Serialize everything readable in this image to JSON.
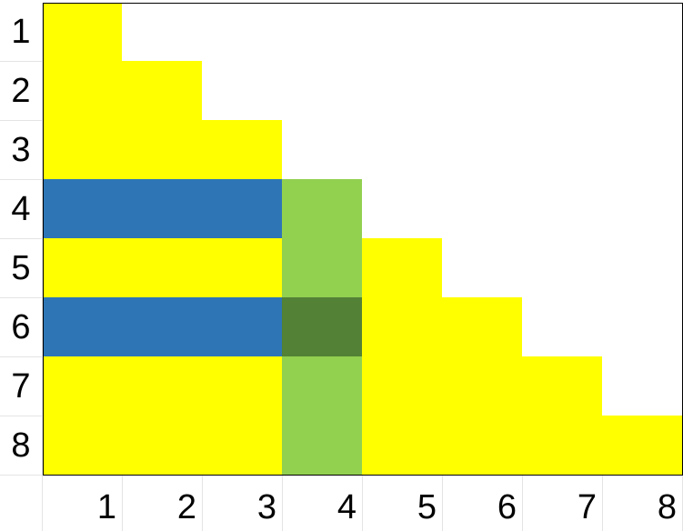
{
  "colors": {
    "Y": "#ffff00",
    "B": "#2e75b6",
    "G": "#92d050",
    "D": "#538135",
    "W": "#ffffff"
  },
  "row_labels": [
    "1",
    "2",
    "3",
    "4",
    "5",
    "6",
    "7",
    "8"
  ],
  "col_labels": [
    "1",
    "2",
    "3",
    "4",
    "5",
    "6",
    "7",
    "8"
  ],
  "grid": [
    [
      "Y",
      "W",
      "W",
      "W",
      "W",
      "W",
      "W",
      "W"
    ],
    [
      "Y",
      "Y",
      "W",
      "W",
      "W",
      "W",
      "W",
      "W"
    ],
    [
      "Y",
      "Y",
      "Y",
      "W",
      "W",
      "W",
      "W",
      "W"
    ],
    [
      "B",
      "B",
      "B",
      "G",
      "W",
      "W",
      "W",
      "W"
    ],
    [
      "Y",
      "Y",
      "Y",
      "G",
      "Y",
      "W",
      "W",
      "W"
    ],
    [
      "B",
      "B",
      "B",
      "D",
      "Y",
      "Y",
      "W",
      "W"
    ],
    [
      "Y",
      "Y",
      "Y",
      "G",
      "Y",
      "Y",
      "Y",
      "W"
    ],
    [
      "Y",
      "Y",
      "Y",
      "G",
      "Y",
      "Y",
      "Y",
      "Y"
    ]
  ]
}
